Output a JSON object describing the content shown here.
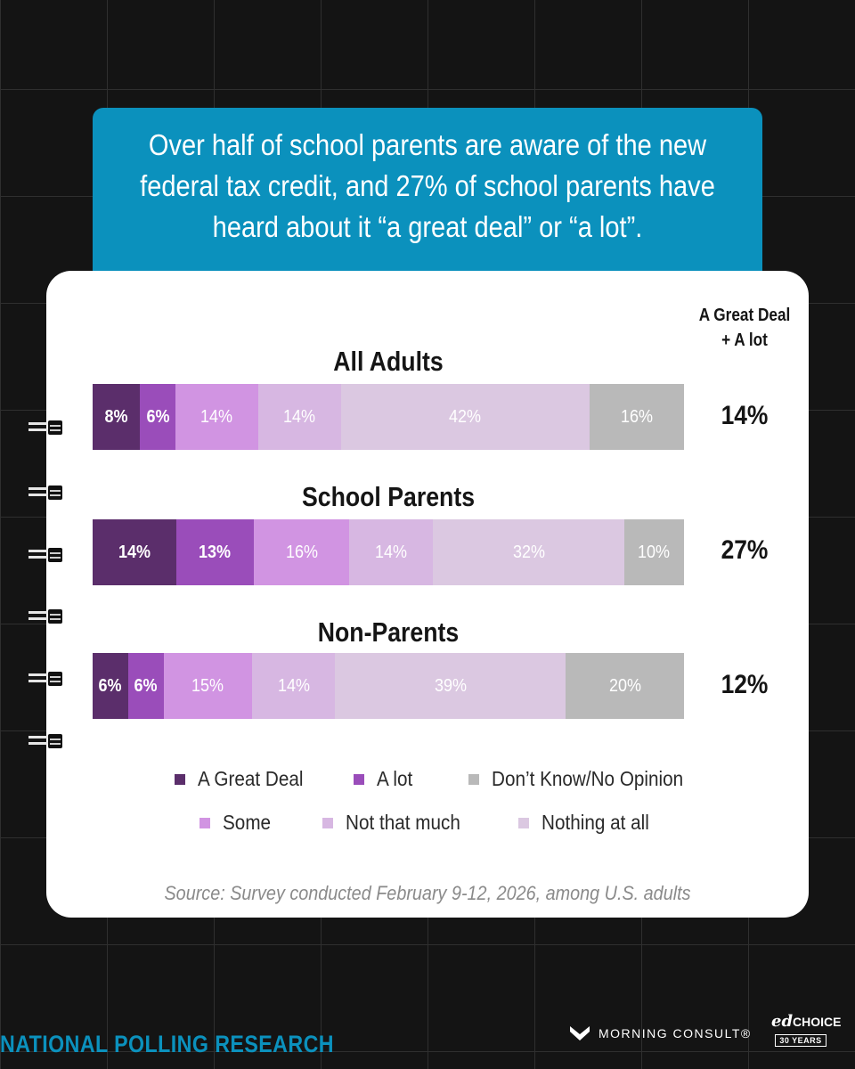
{
  "headline": "Over half of school parents are aware of the new federal tax credit, and 27% of school parents have heard about it “a great deal” or “a lot”.",
  "combined_header": "A Great Deal + A lot",
  "chart_data": {
    "type": "bar",
    "orientation": "horizontal",
    "stacked": true,
    "normalized": true,
    "categories": [
      "All Adults",
      "School Parents",
      "Non-Parents"
    ],
    "series": [
      {
        "name": "A Great Deal",
        "color": "#5b2e6b",
        "values": [
          8,
          14,
          6
        ]
      },
      {
        "name": "A lot",
        "color": "#9a4dba",
        "values": [
          6,
          13,
          6
        ]
      },
      {
        "name": "Some",
        "color": "#d194e2",
        "values": [
          14,
          16,
          15
        ]
      },
      {
        "name": "Not that much",
        "color": "#d7b7e2",
        "values": [
          14,
          14,
          14
        ]
      },
      {
        "name": "Nothing at all",
        "color": "#dbc8e1",
        "values": [
          42,
          32,
          39
        ]
      },
      {
        "name": "Don’t Know/No Opinion",
        "color": "#b9b9b9",
        "values": [
          16,
          10,
          20
        ]
      }
    ],
    "value_suffix": "%",
    "combined_label": "A Great Deal + A lot",
    "combined_values": [
      "14%",
      "27%",
      "12%"
    ],
    "legend_order": [
      "A Great Deal",
      "A lot",
      "Don’t Know/No Opinion",
      "Some",
      "Not that much",
      "Nothing at all"
    ],
    "legend_colors": [
      "#5b2e6b",
      "#9a4dba",
      "#b9b9b9",
      "#d194e2",
      "#d7b7e2",
      "#dbc8e1"
    ]
  },
  "source": "Source: Survey conducted February 9-12, 2026, among U.S. adults",
  "footer": {
    "organization": "NATIONAL POLLING RESEARCH",
    "partner": "MORNING CONSULT®",
    "partner_icon": "morning-consult-m-icon",
    "brand_name_prefix": "ed",
    "brand_name": "CHOICE",
    "brand_tagline": "30 YEARS"
  }
}
